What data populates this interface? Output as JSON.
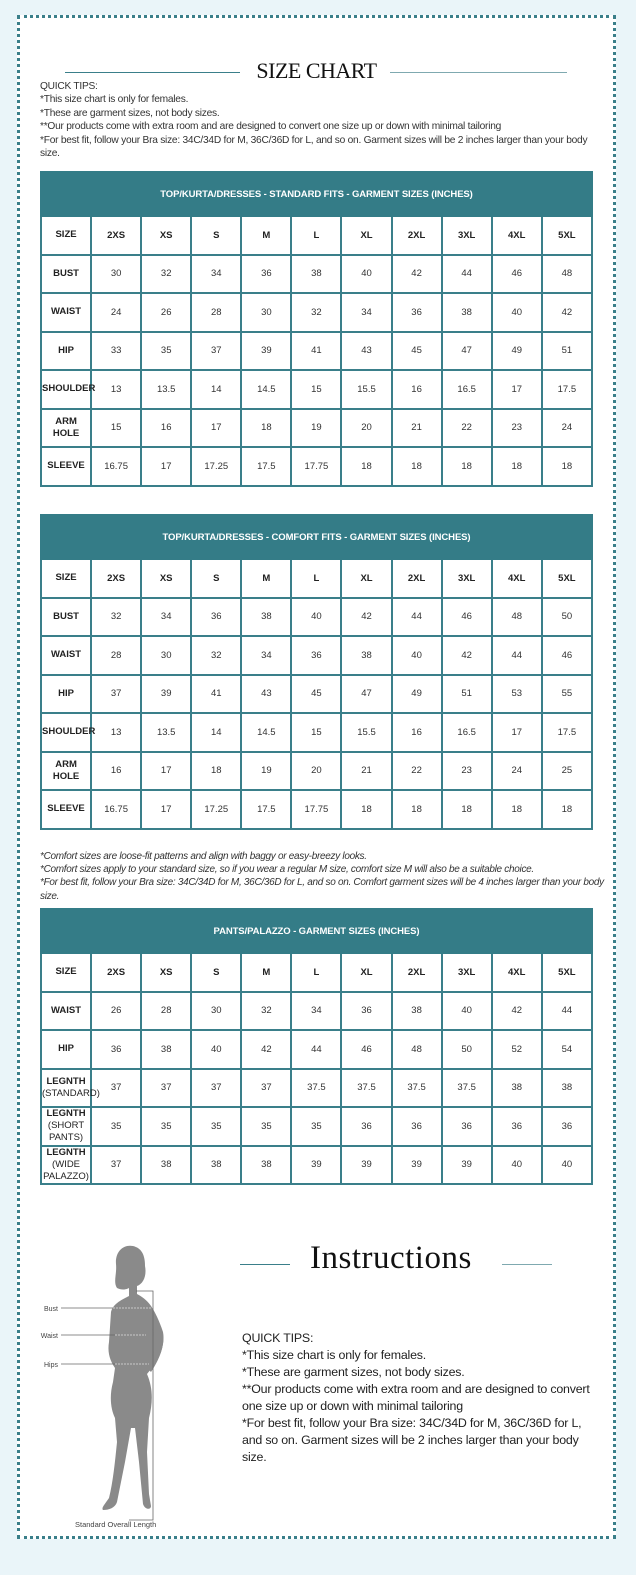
{
  "header": {
    "title": "SIZE CHART"
  },
  "quick_tips": {
    "heading": "QUICK TIPS:",
    "lines": [
      "*This size chart is only for females.",
      "*These are garment sizes, not body sizes.",
      "**Our products come with extra room and are designed to convert one size up or down with minimal tailoring",
      "*For best fit, follow your Bra size: 34C/34D for M, 36C/36D for L, and so on. Garment sizes will be 2 inches larger than your body size."
    ]
  },
  "tables": [
    {
      "title": "TOP/KURTA/DRESSES - STANDARD FITS - GARMENT SIZES (INCHES)",
      "header": [
        "SIZE",
        "2XS",
        "XS",
        "S",
        "M",
        "L",
        "XL",
        "2XL",
        "3XL",
        "4XL",
        "5XL"
      ],
      "rows": [
        {
          "label": "BUST",
          "values": [
            "30",
            "32",
            "34",
            "36",
            "38",
            "40",
            "42",
            "44",
            "46",
            "48"
          ]
        },
        {
          "label": "WAIST",
          "values": [
            "24",
            "26",
            "28",
            "30",
            "32",
            "34",
            "36",
            "38",
            "40",
            "42"
          ]
        },
        {
          "label": "HIP",
          "values": [
            "33",
            "35",
            "37",
            "39",
            "41",
            "43",
            "45",
            "47",
            "49",
            "51"
          ]
        },
        {
          "label": "SHOULDER",
          "values": [
            "13",
            "13.5",
            "14",
            "14.5",
            "15",
            "15.5",
            "16",
            "16.5",
            "17",
            "17.5"
          ]
        },
        {
          "label": "ARM HOLE",
          "values": [
            "15",
            "16",
            "17",
            "18",
            "19",
            "20",
            "21",
            "22",
            "23",
            "24"
          ]
        },
        {
          "label": "SLEEVE",
          "values": [
            "16.75",
            "17",
            "17.25",
            "17.5",
            "17.75",
            "18",
            "18",
            "18",
            "18",
            "18"
          ]
        }
      ]
    },
    {
      "title": "TOP/KURTA/DRESSES - COMFORT FITS - GARMENT SIZES (INCHES)",
      "header": [
        "SIZE",
        "2XS",
        "XS",
        "S",
        "M",
        "L",
        "XL",
        "2XL",
        "3XL",
        "4XL",
        "5XL"
      ],
      "rows": [
        {
          "label": "BUST",
          "values": [
            "32",
            "34",
            "36",
            "38",
            "40",
            "42",
            "44",
            "46",
            "48",
            "50"
          ]
        },
        {
          "label": "WAIST",
          "values": [
            "28",
            "30",
            "32",
            "34",
            "36",
            "38",
            "40",
            "42",
            "44",
            "46"
          ]
        },
        {
          "label": "HIP",
          "values": [
            "37",
            "39",
            "41",
            "43",
            "45",
            "47",
            "49",
            "51",
            "53",
            "55"
          ]
        },
        {
          "label": "SHOULDER",
          "values": [
            "13",
            "13.5",
            "14",
            "14.5",
            "15",
            "15.5",
            "16",
            "16.5",
            "17",
            "17.5"
          ]
        },
        {
          "label": "ARM HOLE",
          "values": [
            "16",
            "17",
            "18",
            "19",
            "20",
            "21",
            "22",
            "23",
            "24",
            "25"
          ]
        },
        {
          "label": "SLEEVE",
          "values": [
            "16.75",
            "17",
            "17.25",
            "17.5",
            "17.75",
            "18",
            "18",
            "18",
            "18",
            "18"
          ]
        }
      ]
    },
    {
      "title": "PANTS/PALAZZO - GARMENT SIZES (INCHES)",
      "header": [
        "SIZE",
        "2XS",
        "XS",
        "S",
        "M",
        "L",
        "XL",
        "2XL",
        "3XL",
        "4XL",
        "5XL"
      ],
      "rows": [
        {
          "label": "WAIST",
          "values": [
            "26",
            "28",
            "30",
            "32",
            "34",
            "36",
            "38",
            "40",
            "42",
            "44"
          ]
        },
        {
          "label": "HIP",
          "values": [
            "36",
            "38",
            "40",
            "42",
            "44",
            "46",
            "48",
            "50",
            "52",
            "54"
          ]
        },
        {
          "label": "LEGNTH",
          "sub": "(STANDARD)",
          "values": [
            "37",
            "37",
            "37",
            "37",
            "37.5",
            "37.5",
            "37.5",
            "37.5",
            "38",
            "38"
          ]
        },
        {
          "label": "LEGNTH",
          "sub": "(SHORT PANTS)",
          "values": [
            "35",
            "35",
            "35",
            "35",
            "35",
            "36",
            "36",
            "36",
            "36",
            "36"
          ]
        },
        {
          "label": "LEGNTH",
          "sub": "(WIDE PALAZZO)",
          "values": [
            "37",
            "38",
            "38",
            "38",
            "39",
            "39",
            "39",
            "39",
            "40",
            "40"
          ]
        }
      ]
    }
  ],
  "comfort_notes": [
    "*Comfort sizes are loose-fit patterns and align with baggy or easy-breezy looks.",
    "*Comfort sizes apply to your standard size, so if you wear a regular M size, comfort size M will also be a suitable choice.",
    "*For best fit, follow your Bra size: 34C/34D for M, 36C/36D for L, and so on. Comfort garment sizes will be 4 inches larger than your body size."
  ],
  "figure": {
    "labels": {
      "bust": "Bust",
      "waist": "Waist",
      "hips": "Hips",
      "length": "Standard Overall Length"
    }
  },
  "instructions": {
    "title": "Instructions",
    "heading": "QUICK TIPS:",
    "lines": [
      "*This size chart is only for females.",
      "*These are garment sizes, not body sizes.",
      "**Our products come with extra room and are designed to convert one size up or down with minimal tailoring",
      "*For best fit, follow your Bra size: 34C/34D for M, 36C/36D for L, and so on. Garment sizes will be 2 inches larger than your body size."
    ]
  },
  "colors": {
    "accent": "#347c87",
    "background": "#eaf5f9",
    "silhouette": "#8a8a8a"
  }
}
